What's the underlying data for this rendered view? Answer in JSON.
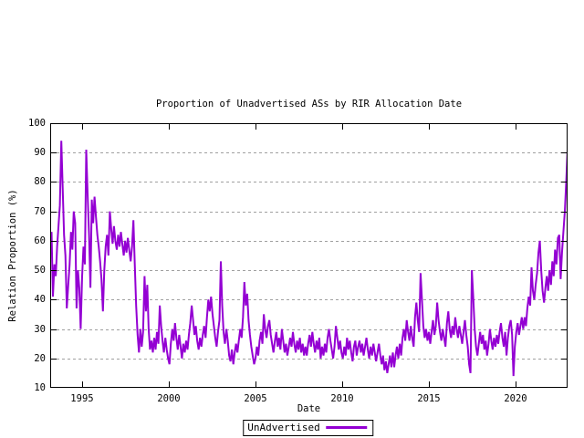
{
  "chart_data": {
    "type": "line",
    "title": "Proportion of Unadvertised ASs by RIR Allocation Date",
    "xlabel": "Date",
    "ylabel": "Relation Proportion (%)",
    "xlim": [
      1993.16,
      2023.0
    ],
    "ylim": [
      10,
      100
    ],
    "xticks": [
      1995,
      2000,
      2005,
      2010,
      2015,
      2020
    ],
    "yticks": [
      10,
      20,
      30,
      40,
      50,
      60,
      70,
      80,
      90,
      100
    ],
    "grid": "horizontal-dashed-gray",
    "legend_position": "below-plot-centered",
    "series": [
      {
        "name": "UnAdvertised",
        "color": "#9400d3",
        "x_start": 1993.16,
        "x_step": 0.08,
        "values": [
          56,
          63,
          41,
          52,
          48,
          58,
          65,
          72,
          94,
          78,
          62,
          55,
          37,
          45,
          52,
          63,
          57,
          70,
          66,
          37,
          50,
          44,
          30,
          48,
          58,
          52,
          91,
          76,
          62,
          44,
          74,
          66,
          75,
          68,
          62,
          58,
          53,
          47,
          36,
          50,
          58,
          62,
          55,
          70,
          64,
          59,
          65,
          60,
          57,
          62,
          58,
          63,
          59,
          55,
          60,
          56,
          61,
          57,
          53,
          58,
          67,
          52,
          38,
          28,
          22,
          30,
          24,
          29,
          48,
          36,
          45,
          30,
          23,
          26,
          22,
          27,
          23,
          29,
          25,
          38,
          31,
          26,
          22,
          27,
          23,
          20,
          18,
          25,
          30,
          26,
          32,
          27,
          23,
          28,
          24,
          20,
          25,
          22,
          26,
          23,
          28,
          32,
          38,
          33,
          28,
          31,
          26,
          23,
          27,
          24,
          28,
          31,
          27,
          34,
          40,
          36,
          41,
          35,
          31,
          27,
          24,
          29,
          33,
          53,
          38,
          29,
          25,
          30,
          26,
          21,
          19,
          23,
          18,
          22,
          25,
          22,
          26,
          30,
          27,
          34,
          46,
          38,
          42,
          33,
          28,
          24,
          21,
          18,
          20,
          24,
          21,
          26,
          29,
          25,
          35,
          30,
          27,
          31,
          33,
          28,
          25,
          22,
          26,
          29,
          24,
          27,
          23,
          30,
          26,
          22,
          25,
          21,
          24,
          27,
          24,
          29,
          25,
          22,
          26,
          23,
          27,
          22,
          25,
          21,
          24,
          21,
          25,
          28,
          24,
          29,
          25,
          22,
          26,
          23,
          27,
          20,
          24,
          21,
          25,
          22,
          27,
          30,
          26,
          23,
          20,
          24,
          31,
          27,
          23,
          26,
          22,
          20,
          24,
          21,
          27,
          23,
          26,
          22,
          19,
          24,
          26,
          21,
          24,
          26,
          22,
          25,
          21,
          24,
          27,
          23,
          20,
          24,
          21,
          25,
          22,
          19,
          22,
          25,
          21,
          18,
          21,
          16,
          19,
          15,
          18,
          21,
          17,
          22,
          17,
          21,
          24,
          20,
          25,
          21,
          27,
          30,
          26,
          33,
          29,
          26,
          31,
          27,
          24,
          34,
          39,
          33,
          29,
          49,
          40,
          31,
          27,
          30,
          26,
          29,
          25,
          29,
          33,
          28,
          31,
          39,
          33,
          29,
          26,
          30,
          27,
          24,
          32,
          36,
          30,
          27,
          31,
          28,
          34,
          30,
          27,
          31,
          28,
          25,
          29,
          33,
          28,
          24,
          18,
          15,
          50,
          41,
          30,
          24,
          21,
          25,
          29,
          25,
          28,
          23,
          26,
          21,
          25,
          30,
          26,
          23,
          27,
          24,
          28,
          25,
          29,
          32,
          27,
          24,
          29,
          21,
          27,
          31,
          33,
          28,
          14,
          24,
          29,
          32,
          28,
          31,
          34,
          30,
          34,
          31,
          37,
          41,
          38,
          51,
          43,
          40,
          45,
          49,
          56,
          60,
          50,
          43,
          39,
          44,
          48,
          43,
          50,
          45,
          53,
          48,
          57,
          52,
          61,
          62,
          47,
          56,
          63,
          70,
          80,
          91
        ]
      }
    ]
  },
  "colors": {
    "background": "#ffffff",
    "border": "#000000",
    "grid": "#a0a0a0",
    "text": "#000000",
    "line": "#9400d3"
  }
}
